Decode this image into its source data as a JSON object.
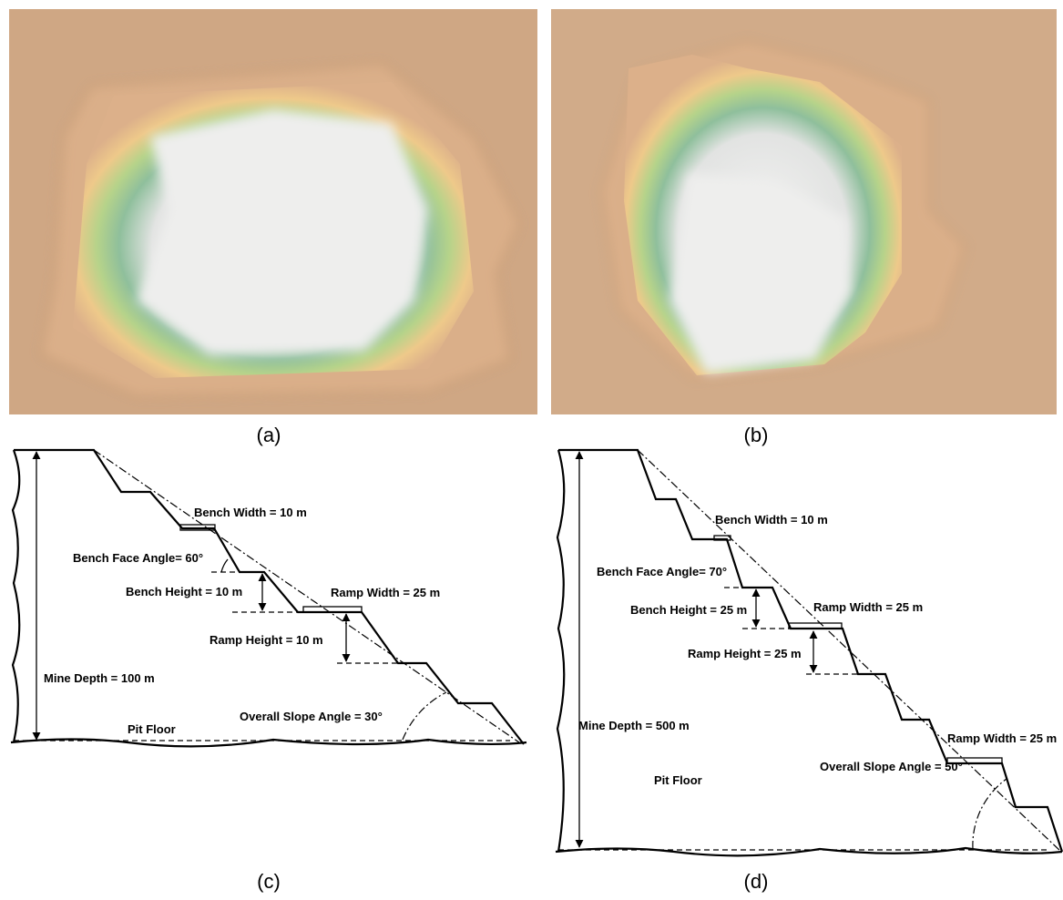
{
  "panels": [
    {
      "label": "(a)"
    },
    {
      "label": "(b)"
    },
    {
      "label": "(c)",
      "annotations": [
        "Bench Width = 10 m",
        "Bench Face Angle= 60°",
        "Bench Height = 10 m",
        "Ramp Width = 25 m",
        "Ramp Height = 10 m",
        "Mine Depth = 100 m",
        "Overall Slope Angle = 30°",
        "Pit Floor"
      ]
    },
    {
      "label": "(d)",
      "annotations": [
        "Bench Width = 10 m",
        "Bench Face Angle= 70°",
        "Bench Height = 25 m",
        "Ramp Width = 25 m",
        "Ramp Height = 25 m",
        "Mine Depth = 500 m",
        "Ramp Width = 25 m",
        "Overall Slope Angle = 50°",
        "Pit Floor"
      ]
    }
  ]
}
